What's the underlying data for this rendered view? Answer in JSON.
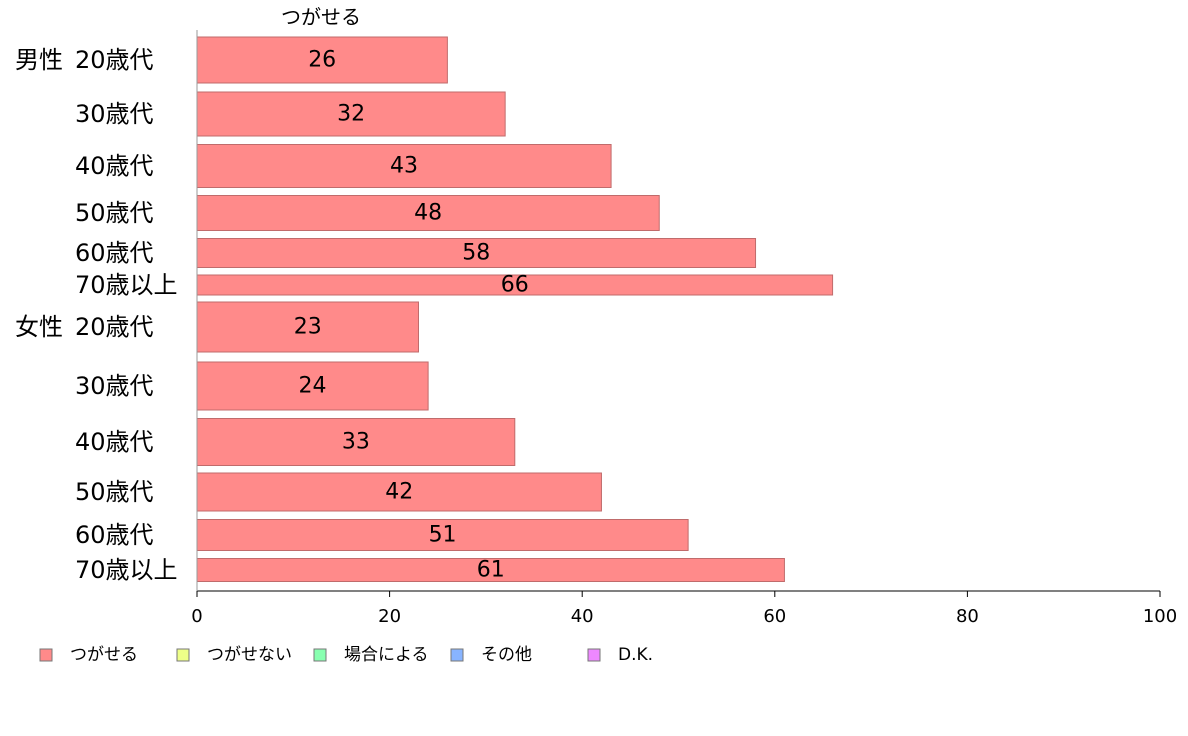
{
  "chart_data": {
    "type": "bar",
    "orientation": "horizontal",
    "series_title": "つがせる",
    "groups": [
      {
        "label": "男性",
        "categories": [
          "20歳代",
          "30歳代",
          "40歳代",
          "50歳代",
          "60歳代",
          "70歳以上"
        ],
        "values": [
          26,
          32,
          43,
          48,
          58,
          66
        ]
      },
      {
        "label": "女性",
        "categories": [
          "20歳代",
          "30歳代",
          "40歳代",
          "50歳代",
          "60歳代",
          "70歳以上"
        ],
        "values": [
          23,
          24,
          33,
          42,
          51,
          61
        ]
      }
    ],
    "xlim": [
      0,
      100
    ],
    "xticks": [
      0,
      20,
      40,
      60,
      80,
      100
    ],
    "grid": false,
    "legend_position": "bottom",
    "legend": [
      {
        "name": "つがせる",
        "color": "#ff8a8a"
      },
      {
        "name": "つがせない",
        "color": "#eeff88"
      },
      {
        "name": "場合による",
        "color": "#88ffb0"
      },
      {
        "name": "その他",
        "color": "#88b4ff"
      },
      {
        "name": "D.K.",
        "color": "#ee88ff"
      }
    ]
  }
}
